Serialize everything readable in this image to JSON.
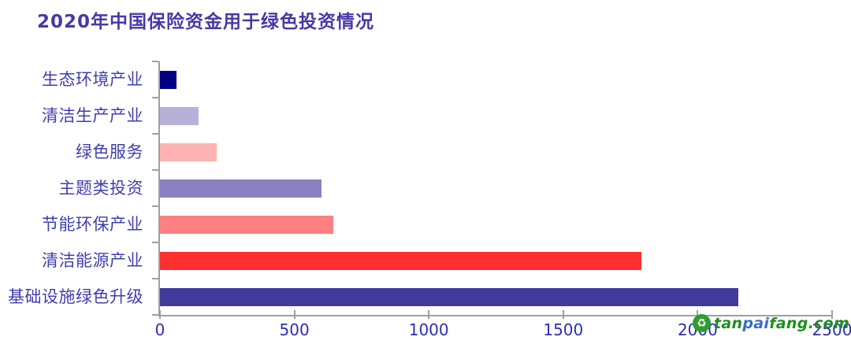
{
  "chart_data": {
    "type": "bar",
    "orientation": "horizontal",
    "title": "2020年中国保险资金用于绿色投资情况",
    "categories": [
      "生态环境产业",
      "清洁生产产业",
      "绿色服务",
      "主题类投资",
      "节能环保产业",
      "清洁能源产业",
      "基础设施绿色升级"
    ],
    "values": [
      63,
      145,
      210,
      600,
      645,
      1790,
      2150
    ],
    "xlabel": "",
    "ylabel": "",
    "xlim": [
      0,
      2500
    ],
    "xticks": [
      0,
      500,
      1000,
      1500,
      2000,
      2500
    ],
    "grid": false,
    "legend": false,
    "bar_colors": [
      "#000084",
      "#b7b1da",
      "#ffb2b2",
      "#8a81c1",
      "#fe8080",
      "#fe2f2f",
      "#413a9d"
    ],
    "title_color": "#4639a7",
    "category_label_color": "#3e3eb0",
    "tick_label_color": "#2d2dbb",
    "axis_color": "#9f9f9f"
  },
  "watermark": {
    "logo_icon": "recycle-icon",
    "logo_glyph": "♻",
    "logo_circle_color": "#2e9e2e",
    "text_parts": [
      {
        "text": "tan",
        "color": "#1d8e1d"
      },
      {
        "text": "pai",
        "color": "#3a6cc8"
      },
      {
        "text": "fang.com",
        "color": "#1d8e1d"
      }
    ]
  }
}
